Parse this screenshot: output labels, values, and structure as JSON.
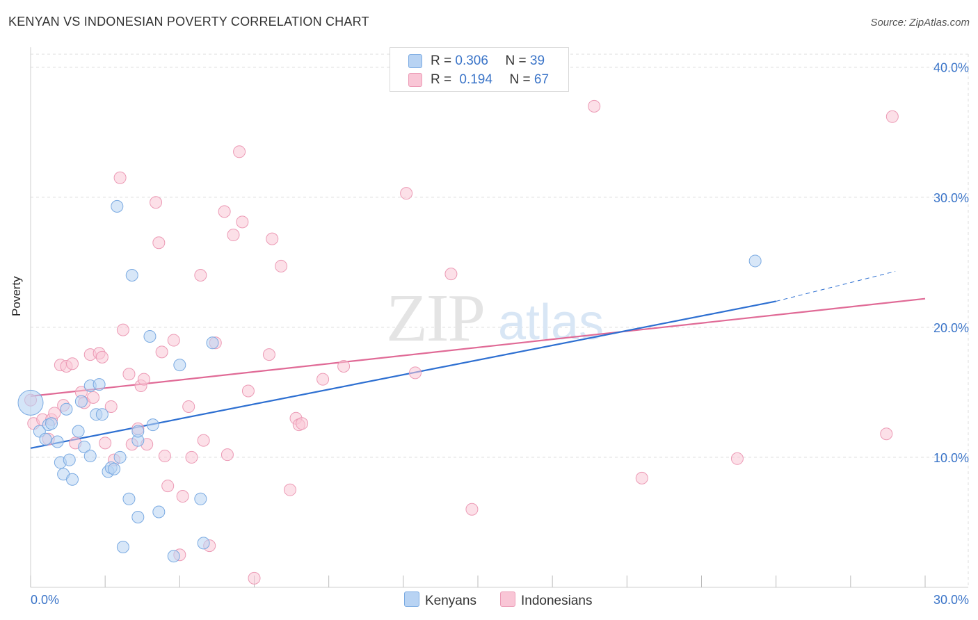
{
  "header": {
    "title": "KENYAN VS INDONESIAN POVERTY CORRELATION CHART",
    "source": "Source: ZipAtlas.com"
  },
  "watermark": {
    "zip": "ZIP",
    "atlas": "atlas"
  },
  "legend": {
    "rows": [
      {
        "r_label": "R =",
        "r_value": "0.306",
        "n_label": "N =",
        "n_value": "39"
      },
      {
        "r_label": "R =",
        "r_value": "0.194",
        "n_label": "N =",
        "n_value": "67"
      }
    ]
  },
  "bottom_legend": {
    "kenyans": "Kenyans",
    "indonesians": "Indonesians"
  },
  "colors": {
    "kenyan_fill": "#b8d3f3",
    "kenyan_stroke": "#7aaae2",
    "kenyan_line": "#2d6fd1",
    "indonesian_fill": "#f9c6d6",
    "indonesian_stroke": "#ec9ab5",
    "indonesian_line": "#e06a96",
    "axis_text": "#3a74c8"
  },
  "chart_data": {
    "type": "scatter",
    "title": "KENYAN VS INDONESIAN POVERTY CORRELATION CHART",
    "xlabel": "",
    "ylabel": "Poverty",
    "xlim": [
      0,
      30
    ],
    "ylim": [
      0,
      41
    ],
    "x_tick_labels": [
      "0.0%",
      "30.0%"
    ],
    "y_ticks": [
      10,
      20,
      30,
      40
    ],
    "y_tick_labels": [
      "10.0%",
      "20.0%",
      "30.0%",
      "40.0%"
    ],
    "series": [
      {
        "name": "Kenyans",
        "r": 0.306,
        "n": 39,
        "trend": {
          "x0": 0,
          "y0": 10.7,
          "x1": 25,
          "y1": 22.0,
          "dash_to_x": 29.0,
          "dash_to_y": 24.3
        },
        "points": [
          [
            0.0,
            14.2
          ],
          [
            0.3,
            12.0
          ],
          [
            0.6,
            12.5
          ],
          [
            0.7,
            12.6
          ],
          [
            0.5,
            11.4
          ],
          [
            0.9,
            11.2
          ],
          [
            1.2,
            13.7
          ],
          [
            1.0,
            9.6
          ],
          [
            1.1,
            8.7
          ],
          [
            1.3,
            9.8
          ],
          [
            1.4,
            8.3
          ],
          [
            1.6,
            12.0
          ],
          [
            1.7,
            14.3
          ],
          [
            1.8,
            10.8
          ],
          [
            2.0,
            10.1
          ],
          [
            2.0,
            15.5
          ],
          [
            2.2,
            13.3
          ],
          [
            2.3,
            15.6
          ],
          [
            2.4,
            13.3
          ],
          [
            2.6,
            8.9
          ],
          [
            2.7,
            9.2
          ],
          [
            2.8,
            9.1
          ],
          [
            3.0,
            10.0
          ],
          [
            2.9,
            29.3
          ],
          [
            3.3,
            6.8
          ],
          [
            3.4,
            24.0
          ],
          [
            3.6,
            11.3
          ],
          [
            3.6,
            5.4
          ],
          [
            3.6,
            12.0
          ],
          [
            4.0,
            19.3
          ],
          [
            4.1,
            12.5
          ],
          [
            4.3,
            5.8
          ],
          [
            4.8,
            2.4
          ],
          [
            5.0,
            17.1
          ],
          [
            5.7,
            6.8
          ],
          [
            5.8,
            3.4
          ],
          [
            6.1,
            18.8
          ],
          [
            24.3,
            25.1
          ],
          [
            3.1,
            3.1
          ]
        ]
      },
      {
        "name": "Indonesians",
        "r": 0.194,
        "n": 67,
        "trend": {
          "x0": 0,
          "y0": 14.7,
          "x1": 30,
          "y1": 22.2
        },
        "points": [
          [
            0.0,
            14.4
          ],
          [
            0.1,
            12.6
          ],
          [
            0.4,
            12.9
          ],
          [
            0.6,
            11.4
          ],
          [
            0.7,
            12.9
          ],
          [
            0.8,
            13.4
          ],
          [
            1.0,
            17.1
          ],
          [
            1.2,
            17.0
          ],
          [
            1.1,
            14.0
          ],
          [
            1.4,
            17.2
          ],
          [
            1.5,
            11.1
          ],
          [
            1.7,
            15.0
          ],
          [
            1.8,
            14.2
          ],
          [
            2.1,
            14.6
          ],
          [
            2.0,
            17.9
          ],
          [
            2.3,
            18.0
          ],
          [
            2.4,
            17.7
          ],
          [
            2.5,
            11.1
          ],
          [
            2.7,
            13.9
          ],
          [
            2.8,
            9.8
          ],
          [
            3.0,
            31.5
          ],
          [
            3.1,
            19.8
          ],
          [
            3.3,
            16.4
          ],
          [
            3.4,
            11.0
          ],
          [
            3.6,
            12.2
          ],
          [
            3.7,
            15.5
          ],
          [
            3.8,
            16.0
          ],
          [
            3.9,
            11.0
          ],
          [
            4.2,
            29.6
          ],
          [
            4.3,
            26.5
          ],
          [
            4.4,
            18.1
          ],
          [
            4.5,
            10.1
          ],
          [
            4.6,
            7.8
          ],
          [
            4.8,
            19.0
          ],
          [
            5.0,
            2.5
          ],
          [
            5.1,
            7.0
          ],
          [
            5.3,
            13.9
          ],
          [
            5.4,
            10.0
          ],
          [
            5.7,
            24.0
          ],
          [
            5.8,
            11.3
          ],
          [
            6.0,
            3.2
          ],
          [
            6.2,
            18.8
          ],
          [
            6.5,
            28.9
          ],
          [
            6.6,
            10.2
          ],
          [
            6.8,
            27.1
          ],
          [
            7.0,
            33.5
          ],
          [
            7.1,
            28.1
          ],
          [
            7.3,
            15.1
          ],
          [
            7.5,
            0.7
          ],
          [
            8.0,
            17.9
          ],
          [
            8.1,
            26.8
          ],
          [
            8.4,
            24.7
          ],
          [
            8.7,
            7.5
          ],
          [
            8.9,
            13.0
          ],
          [
            9.0,
            12.5
          ],
          [
            9.1,
            12.6
          ],
          [
            9.8,
            16.0
          ],
          [
            10.5,
            17.0
          ],
          [
            12.6,
            30.3
          ],
          [
            12.9,
            16.5
          ],
          [
            14.1,
            24.1
          ],
          [
            14.8,
            6.0
          ],
          [
            18.9,
            37.0
          ],
          [
            20.5,
            8.4
          ],
          [
            23.7,
            9.9
          ],
          [
            28.7,
            11.8
          ],
          [
            28.9,
            36.2
          ]
        ]
      }
    ]
  }
}
